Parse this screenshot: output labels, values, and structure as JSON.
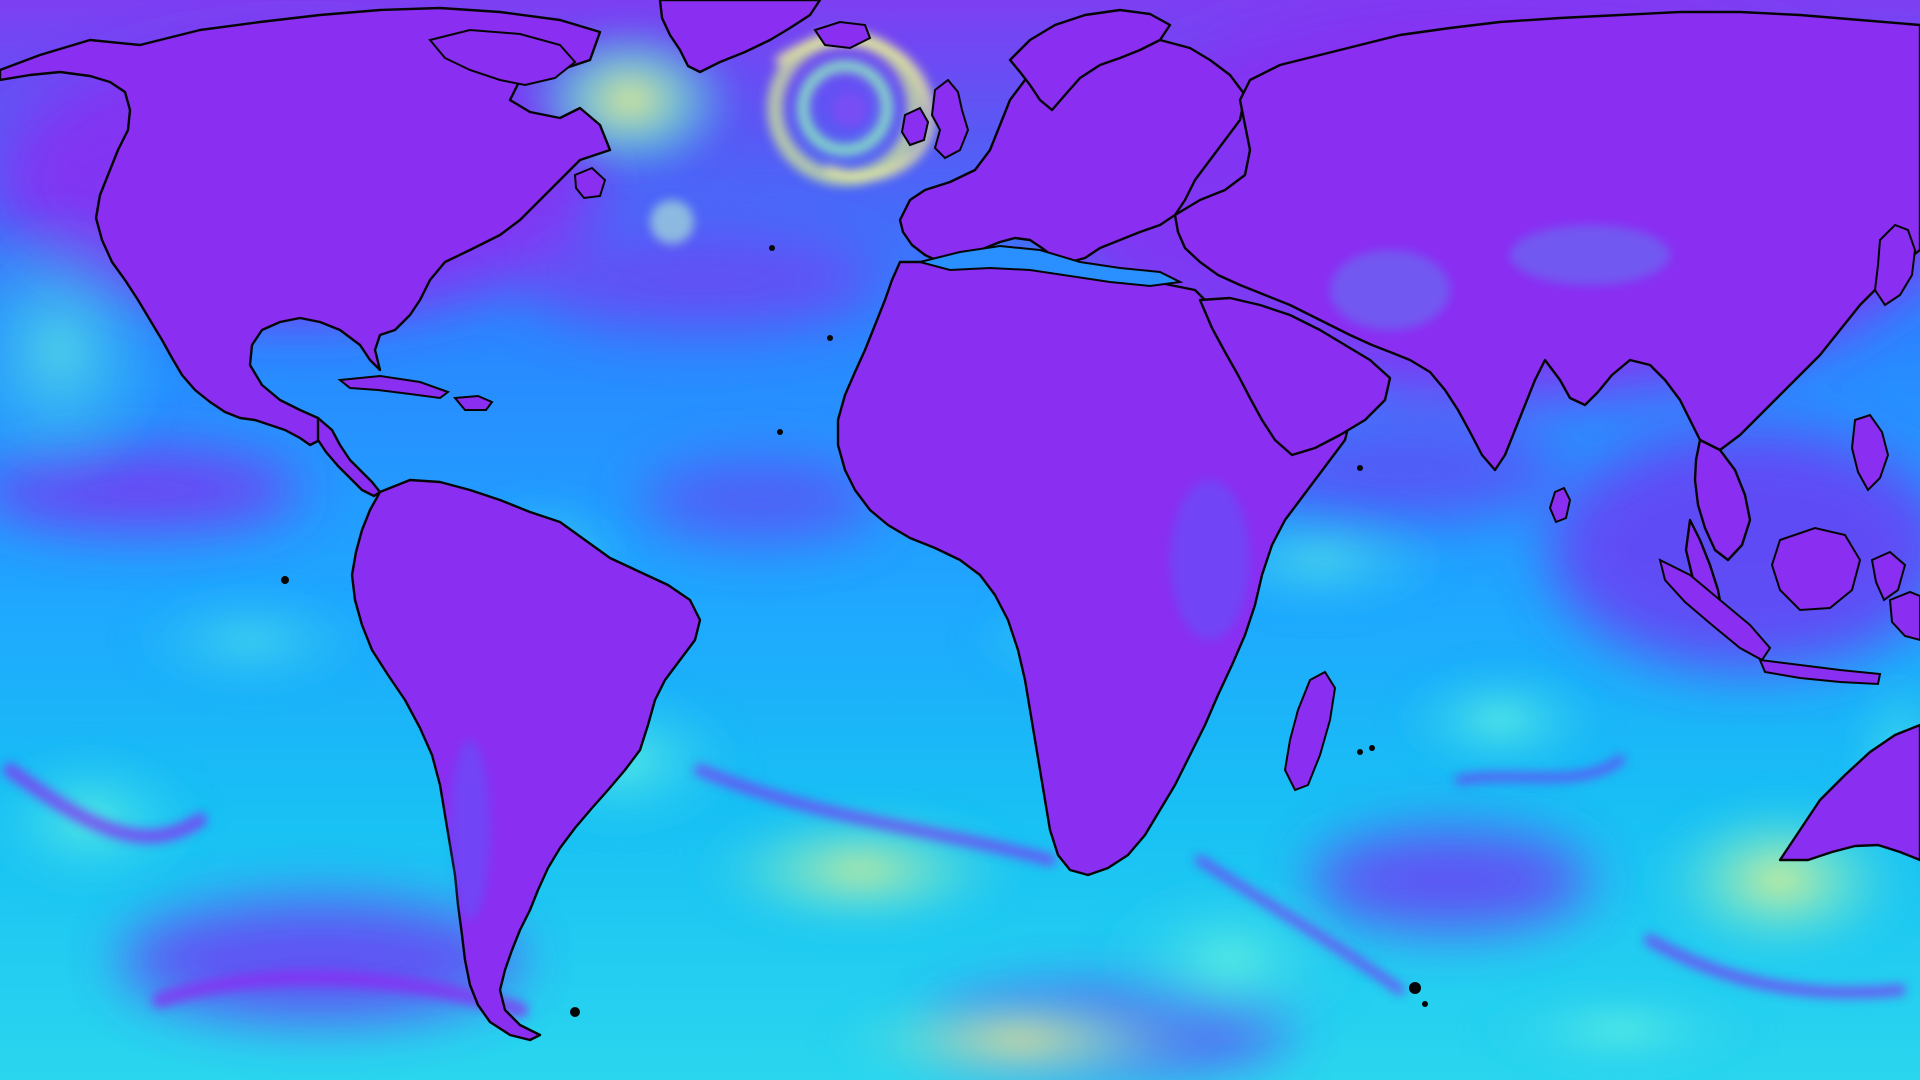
{
  "map": {
    "projection": "equirectangular",
    "extent": "global",
    "coastline_color": "#050505",
    "palette": {
      "low": "#8a2ef2",
      "mid_low": "#1e90ff",
      "mid": "#18d2f0",
      "high": "#9cf0a8",
      "peak": "#e6f28c"
    },
    "features": {
      "storm": "north-atlantic-cyclone",
      "jet": "southern-ocean-jet-streams"
    }
  }
}
